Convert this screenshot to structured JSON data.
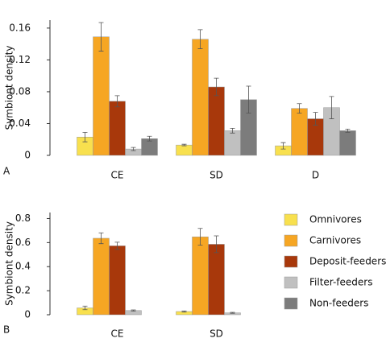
{
  "chart_data": [
    {
      "type": "bar",
      "panel_label": "A",
      "ylabel": "Symbiont density",
      "categories": [
        "CE",
        "SD",
        "D"
      ],
      "series": [
        {
          "color": "#f8e04e",
          "values": [
            0.023,
            0.013,
            0.012
          ],
          "errors": [
            0.006,
            0.001,
            0.004
          ]
        },
        {
          "color": "#f6a623",
          "values": [
            0.149,
            0.146,
            0.059
          ],
          "errors": [
            0.018,
            0.012,
            0.006
          ]
        },
        {
          "color": "#a8380b",
          "values": [
            0.068,
            0.086,
            0.046
          ],
          "errors": [
            0.007,
            0.011,
            0.008
          ]
        },
        {
          "color": "#c0c0c0",
          "values": [
            0.008,
            0.031,
            0.06
          ],
          "errors": [
            0.002,
            0.003,
            0.014
          ]
        },
        {
          "color": "#7c7c7c",
          "values": [
            0.021,
            0.07,
            0.031
          ],
          "errors": [
            0.003,
            0.017,
            0.002
          ]
        }
      ],
      "ylim": [
        0,
        0.17
      ],
      "yticks": [
        0,
        0.04,
        0.08,
        0.12,
        0.16
      ]
    },
    {
      "type": "bar",
      "panel_label": "B",
      "ylabel": "Symbiont density",
      "categories": [
        "CE",
        "SD"
      ],
      "series": [
        {
          "name": "Omnivores",
          "color": "#f8e04e",
          "values": [
            0.057,
            0.027
          ],
          "errors": [
            0.015,
            0.005
          ]
        },
        {
          "name": "Carnivores",
          "color": "#f6a623",
          "values": [
            0.636,
            0.648
          ],
          "errors": [
            0.045,
            0.07
          ]
        },
        {
          "name": "Deposit-feeders",
          "color": "#a8380b",
          "values": [
            0.573,
            0.586
          ],
          "errors": [
            0.03,
            0.07
          ]
        },
        {
          "name": "Filter-feeders",
          "color": "#c0c0c0",
          "values": [
            0.035,
            0.016
          ],
          "errors": [
            0.005,
            0.004
          ]
        },
        {
          "name": "Non-feeders",
          "color": "#7c7c7c",
          "values": [
            null,
            null
          ],
          "errors": [
            null,
            null
          ]
        }
      ],
      "ylim": [
        0,
        0.85
      ],
      "yticks": [
        0,
        0.2,
        0.4,
        0.6,
        0.8
      ],
      "legend": "right"
    }
  ]
}
